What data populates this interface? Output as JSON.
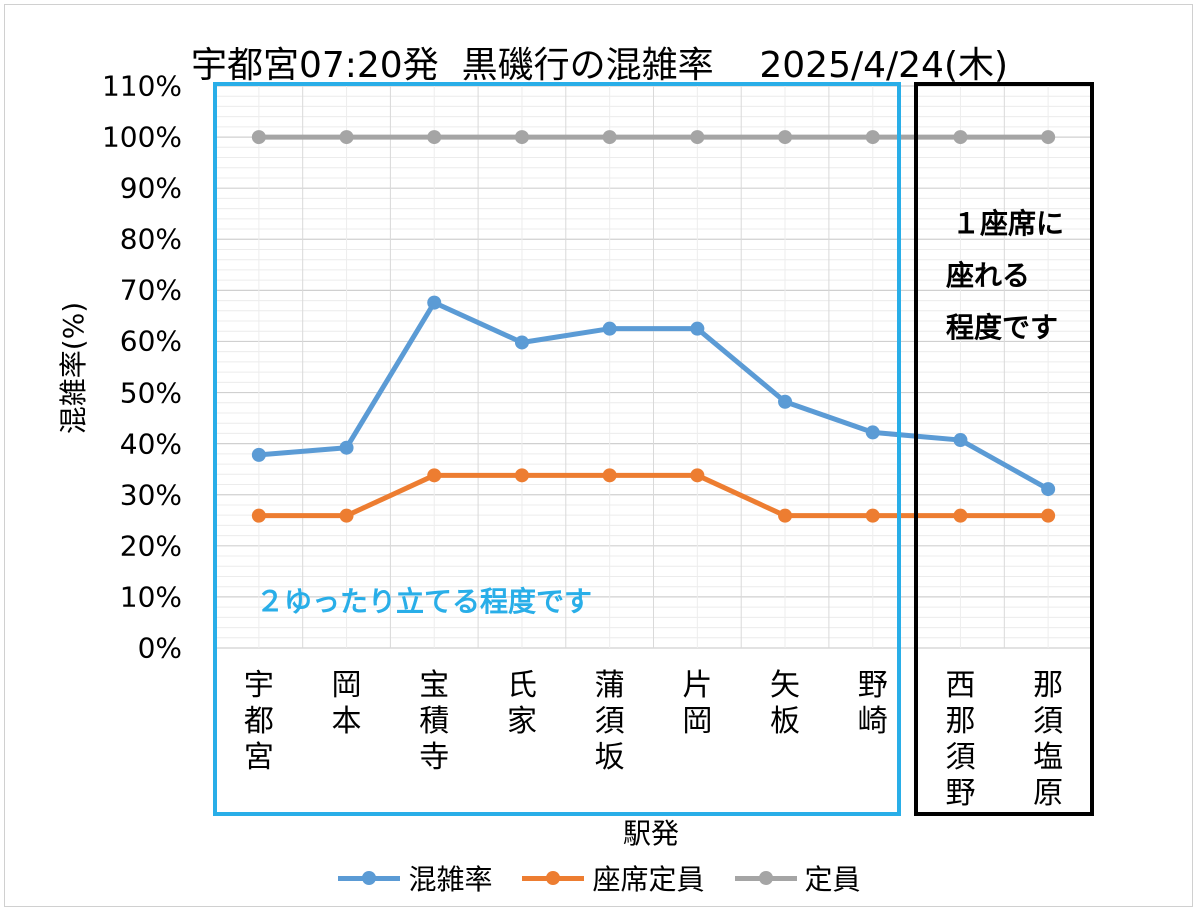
{
  "chart_data": {
    "type": "line",
    "title": "宇都宮07:20発  黒磯行の混雑率    2025/4/24(木)",
    "xlabel": "駅発",
    "ylabel": "混雑率(%)",
    "ylim": [
      0,
      110
    ],
    "yticks": [
      "0%",
      "10%",
      "20%",
      "30%",
      "40%",
      "50%",
      "60%",
      "70%",
      "80%",
      "90%",
      "100%",
      "110%"
    ],
    "categories": [
      [
        "宇",
        "都",
        "宮"
      ],
      [
        "岡",
        "本"
      ],
      [
        "宝",
        "積",
        "寺"
      ],
      [
        "氏",
        "家"
      ],
      [
        "蒲",
        "須",
        "坂"
      ],
      [
        "片",
        "岡"
      ],
      [
        "矢",
        "板"
      ],
      [
        "野",
        "崎"
      ],
      [
        "西",
        "那",
        "須",
        "野"
      ],
      [
        "那",
        "須",
        "塩",
        "原"
      ]
    ],
    "series": [
      {
        "name": "混雑率",
        "color": "#5b9bd5",
        "values": [
          37.8,
          39.2,
          67.6,
          59.8,
          62.5,
          62.5,
          48.2,
          42.2,
          40.7,
          31.1
        ]
      },
      {
        "name": "座席定員",
        "color": "#ed7d31",
        "values": [
          25.9,
          25.9,
          33.8,
          33.8,
          33.8,
          33.8,
          25.9,
          25.9,
          25.9,
          25.9
        ]
      },
      {
        "name": "定員",
        "color": "#a5a5a5",
        "values": [
          100,
          100,
          100,
          100,
          100,
          100,
          100,
          100,
          100,
          100
        ]
      }
    ],
    "grid": true,
    "legend": "bottom",
    "annotations": {
      "blue_box": "２ゆったり立てる程度です",
      "black_box": [
        "１座席に",
        "座れる",
        "程度です"
      ]
    }
  }
}
